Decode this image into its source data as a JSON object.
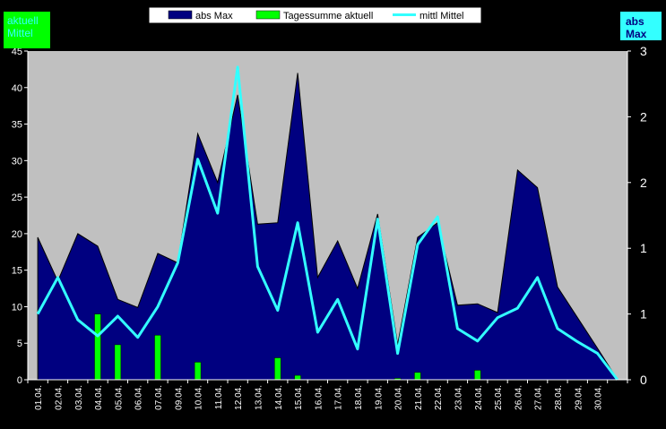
{
  "legend": {
    "items": [
      {
        "label": "abs Max",
        "color": "#000080"
      },
      {
        "label": "Tagessumme aktuell",
        "color": "#00ff00"
      },
      {
        "label": "mittl Mittel",
        "color": "#33ffff"
      }
    ]
  },
  "badges": {
    "left_line1": "aktuell",
    "left_line2": "Mittel",
    "right_line1": "abs",
    "right_line2": "Max"
  },
  "chart_data": {
    "type": "area",
    "categories": [
      "01.04.",
      "02.04.",
      "03.04.",
      "04.04.",
      "05.04.",
      "06.04.",
      "07.04.",
      "09.04.",
      "10.04.",
      "11.04.",
      "12.04.",
      "13.04.",
      "14.04.",
      "15.04.",
      "16.04.",
      "17.04.",
      "18.04.",
      "19.04.",
      "20.04.",
      "21.04.",
      "22.04.",
      "23.04.",
      "24.04.",
      "25.04.",
      "26.04.",
      "27.04.",
      "28.04.",
      "29.04.",
      "30.04.",
      ""
    ],
    "tick_labels": [
      "01.04.",
      "02.04.",
      "03.04.",
      "04.04.",
      "05.04.",
      "06.04.",
      "07.04.",
      "09.04.",
      "10.04.",
      "11.04.",
      "12.04.",
      "13.04.",
      "14.04.",
      "15.04.",
      "16.04.",
      "17.04.",
      "18.04.",
      "19.04.",
      "20.04.",
      "21.04.",
      "22.04.",
      "23.04.",
      "24.04.",
      "25.04.",
      "26.04.",
      "27.04.",
      "28.04.",
      "29.04.",
      "30.04."
    ],
    "series": [
      {
        "name": "abs Max",
        "kind": "area",
        "color": "#000080",
        "values": [
          19.5,
          13.5,
          20.0,
          18.3,
          11.0,
          9.9,
          17.3,
          16.0,
          33.7,
          27.0,
          39.0,
          21.3,
          21.5,
          42.0,
          14.0,
          19.0,
          12.5,
          22.7,
          4.8,
          19.5,
          21.5,
          10.2,
          10.4,
          9.2,
          28.7,
          26.3,
          12.7,
          8.5,
          4.3,
          0
        ]
      },
      {
        "name": "Tagessumme aktuell",
        "kind": "bar",
        "color": "#00ff00",
        "values": [
          0,
          0,
          0,
          9.0,
          4.8,
          0,
          6.1,
          0,
          2.4,
          0,
          0,
          0,
          3.0,
          0.6,
          0,
          0,
          0,
          0,
          0.2,
          1.0,
          0,
          0,
          1.3,
          0,
          0,
          0,
          0,
          0,
          0,
          0
        ]
      },
      {
        "name": "mittl Mittel",
        "kind": "line",
        "color": "#33ffff",
        "values": [
          9.0,
          14.0,
          8.2,
          6.0,
          8.7,
          5.8,
          10.0,
          16.0,
          30.2,
          22.8,
          42.8,
          15.5,
          9.5,
          21.5,
          6.5,
          11.0,
          4.2,
          22.0,
          3.6,
          18.5,
          22.3,
          7.0,
          5.3,
          8.5,
          9.8,
          14.0,
          7.0,
          5.2,
          3.6,
          0
        ]
      }
    ],
    "y_left": {
      "min": 0,
      "max": 45,
      "ticks": [
        "0",
        "5",
        "10",
        "15",
        "20",
        "25",
        "30",
        "35",
        "40",
        "45"
      ]
    },
    "y_right": {
      "ticks": [
        "0",
        "1",
        "1",
        "2",
        "2",
        "3"
      ]
    },
    "grid": false,
    "legend_position": "top-center",
    "plot_background": "#c0c0c0"
  }
}
